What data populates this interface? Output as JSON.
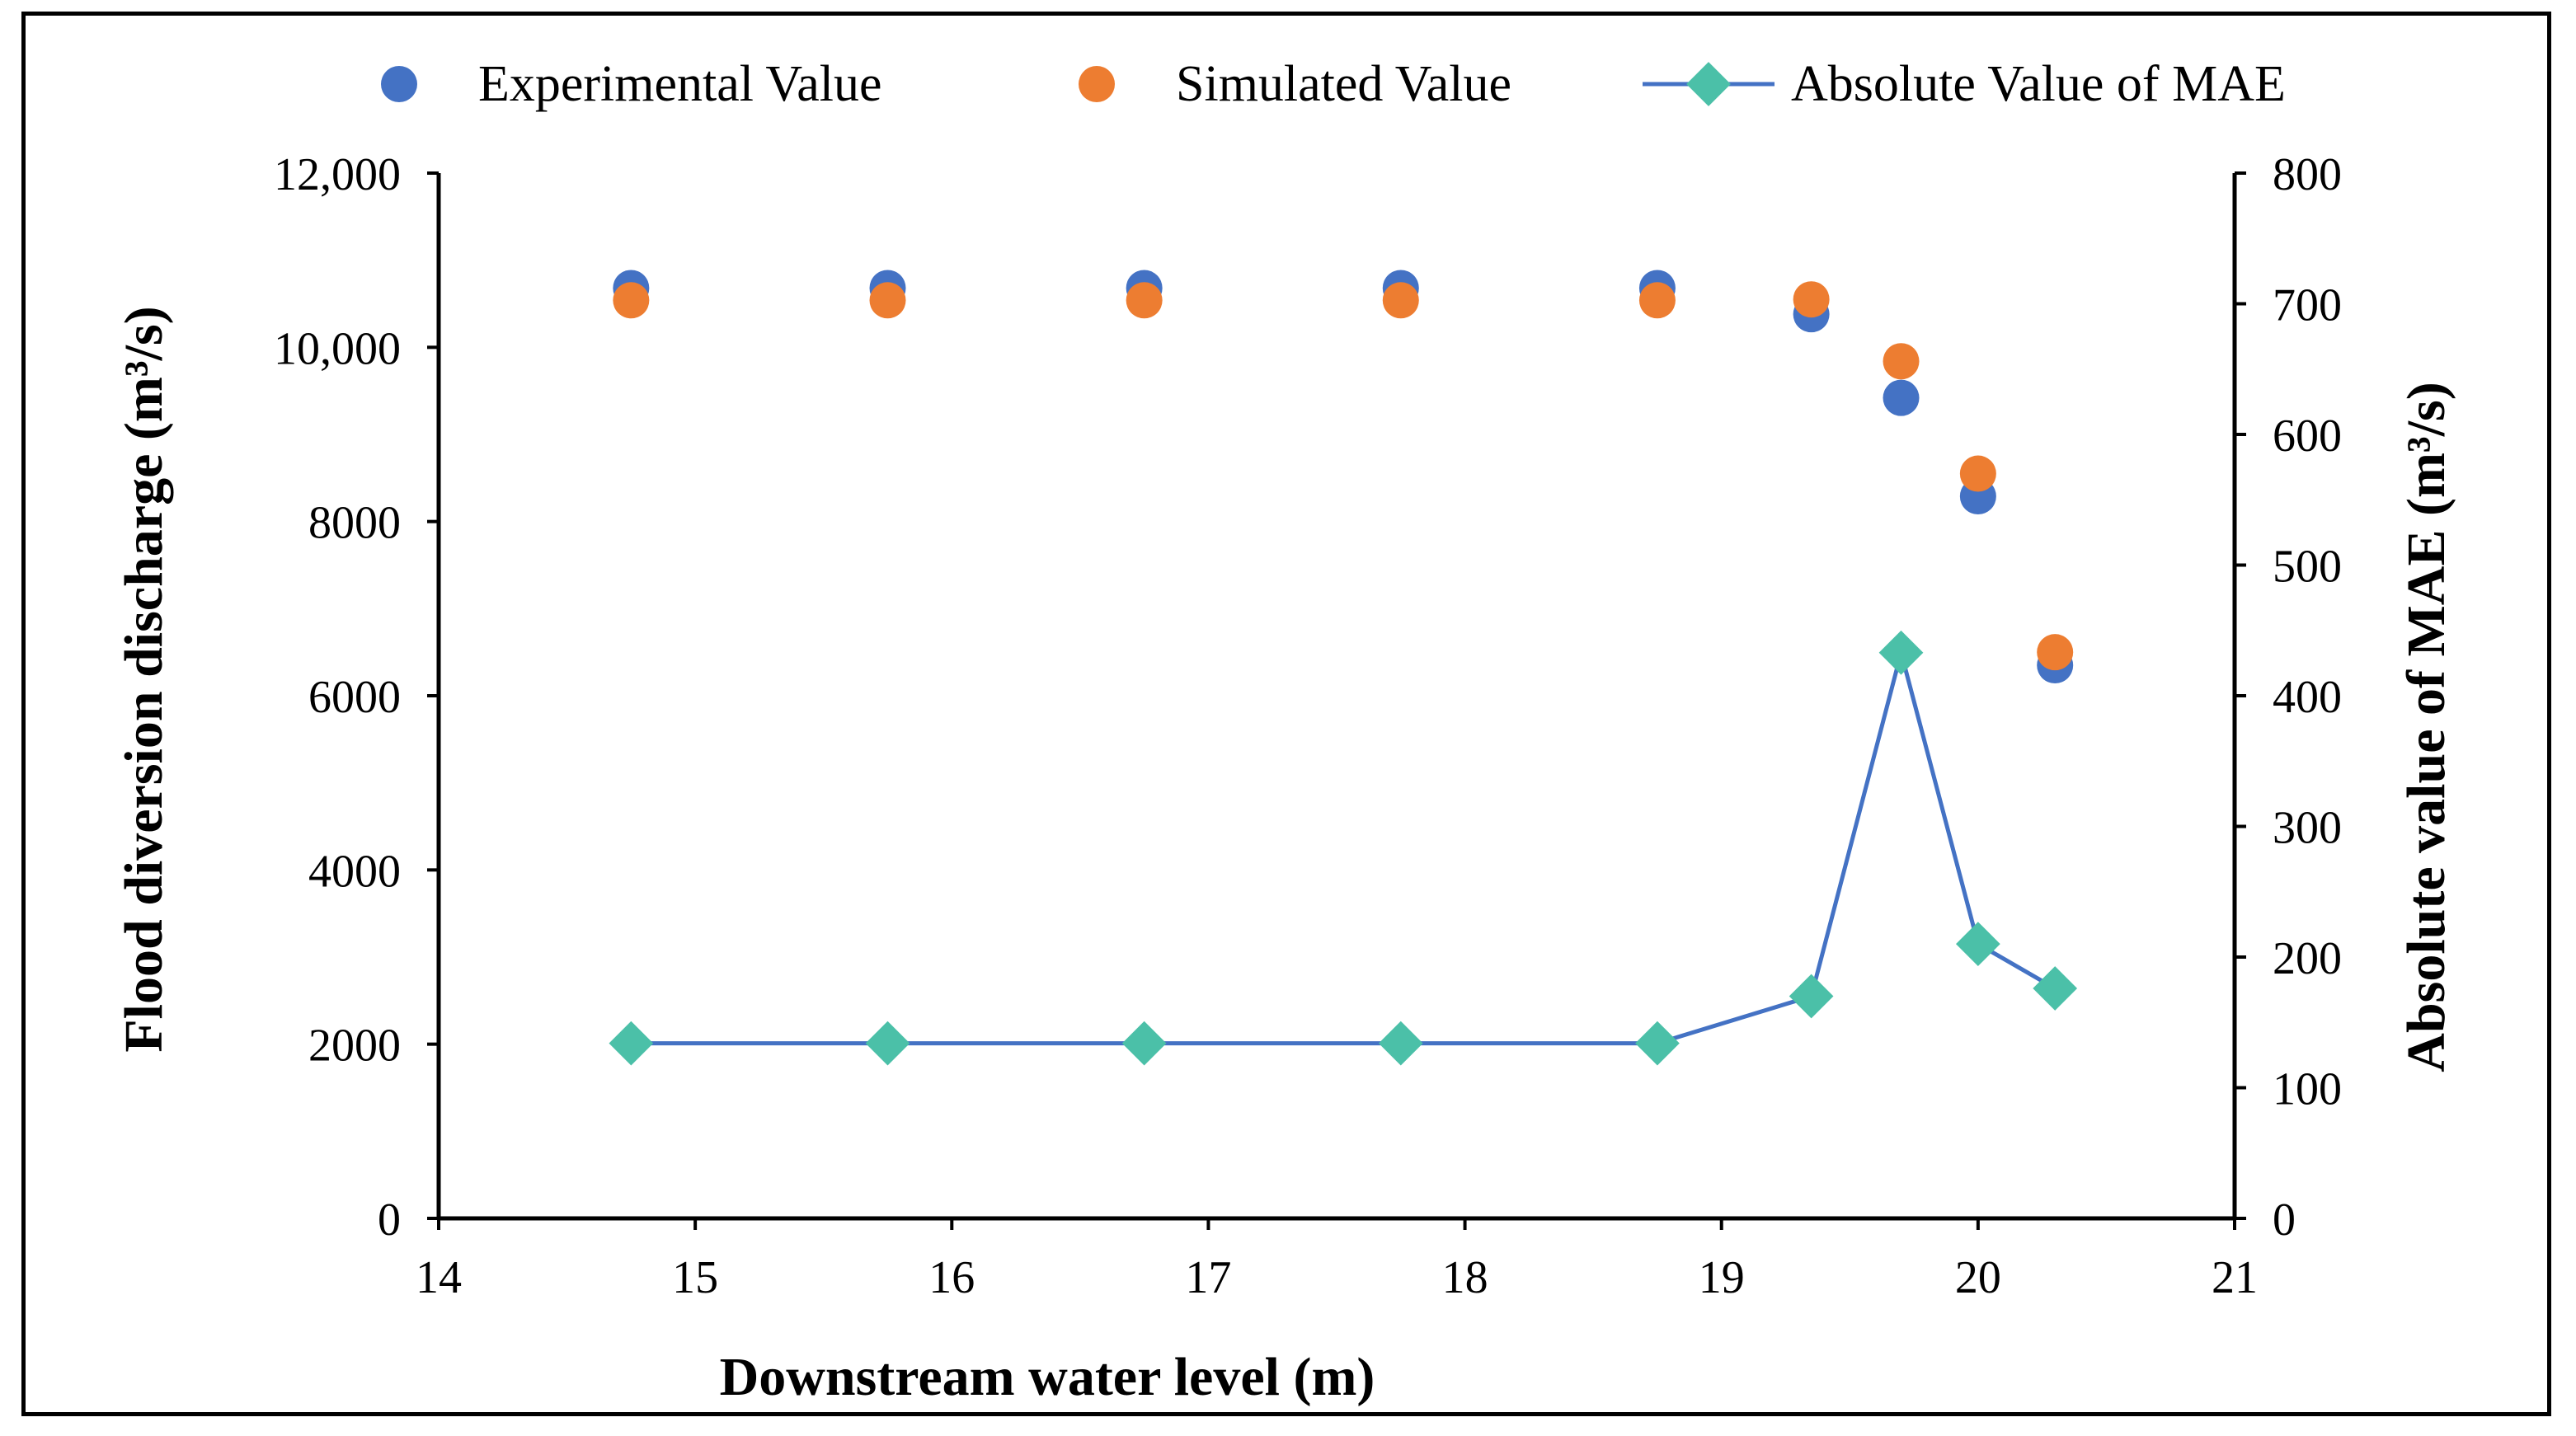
{
  "chart_data": {
    "type": "scatter+line",
    "title": "",
    "xlabel": "Downstream water level (m)",
    "ylabel": "Flood diversion discharge (m³/s)",
    "y2label": "Absolute value of MAE (m³/s)",
    "xlim": [
      14,
      21
    ],
    "ylim": [
      0,
      12000
    ],
    "y2lim": [
      0,
      800
    ],
    "x_ticks": [
      14,
      15,
      16,
      17,
      18,
      19,
      20,
      21
    ],
    "y_ticks": [
      0,
      2000,
      4000,
      6000,
      8000,
      10000,
      12000
    ],
    "y_tick_labels": [
      "0",
      "2000",
      "4000",
      "6000",
      "8000",
      "10,000",
      "12,000"
    ],
    "y2_ticks": [
      0,
      100,
      200,
      300,
      400,
      500,
      600,
      700,
      800
    ],
    "legend_position": "top",
    "series": [
      {
        "name": "Experimental Value",
        "kind": "scatter",
        "axis": "left",
        "color": "#4472C4",
        "x": [
          14.75,
          15.75,
          16.75,
          17.75,
          18.75,
          19.35,
          19.7,
          20.0,
          20.3
        ],
        "y": [
          10680,
          10680,
          10680,
          10680,
          10680,
          10380,
          9420,
          8290,
          6350
        ]
      },
      {
        "name": "Simulated Value",
        "kind": "scatter",
        "axis": "left",
        "color": "#ED7D31",
        "x": [
          14.75,
          15.75,
          16.75,
          17.75,
          18.75,
          19.35,
          19.7,
          20.0,
          20.3
        ],
        "y": [
          10540,
          10540,
          10540,
          10540,
          10540,
          10550,
          9840,
          8550,
          6500
        ]
      },
      {
        "name": "Absolute Value of MAE",
        "kind": "line",
        "axis": "right",
        "color": "#4472C4",
        "marker_color": "#4BC0A8",
        "x": [
          14.75,
          15.75,
          16.75,
          17.75,
          18.75,
          19.35,
          19.7,
          20.0,
          20.3
        ],
        "y": [
          134,
          134,
          134,
          134,
          134,
          170,
          433,
          210,
          176
        ]
      }
    ]
  }
}
